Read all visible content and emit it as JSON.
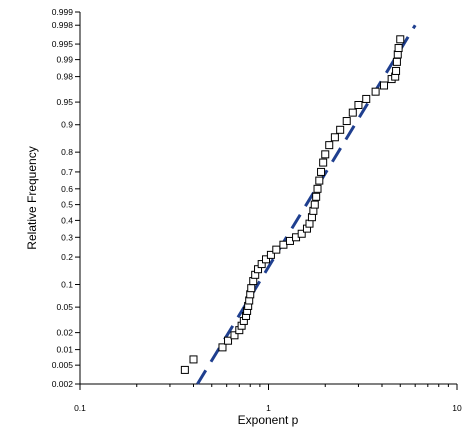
{
  "chart_data": {
    "type": "scatter",
    "title": "",
    "xlabel": "Exponent p",
    "ylabel": "Relative Frequency",
    "x_scale": "log",
    "y_scale": "probability",
    "xlim": [
      0.1,
      10
    ],
    "ylim": [
      0.002,
      0.999
    ],
    "x_ticks": [
      0.1,
      1,
      10
    ],
    "x_tick_labels": [
      "0.1",
      "1",
      "10"
    ],
    "y_ticks": [
      0.002,
      0.005,
      0.01,
      0.02,
      0.05,
      0.1,
      0.2,
      0.3,
      0.4,
      0.5,
      0.6,
      0.7,
      0.8,
      0.9,
      0.95,
      0.98,
      0.99,
      0.995,
      0.998,
      0.999
    ],
    "y_tick_labels": [
      "0.002",
      "0.005",
      "0.01",
      "0.02",
      "0.05",
      "0.1",
      "0.2",
      "0.3",
      "0.4",
      "0.5",
      "0.6",
      "0.7",
      "0.8",
      "0.9",
      "0.95",
      "0.98",
      "0.99",
      "0.995",
      "0.998",
      "0.999"
    ],
    "grid": false,
    "legend": "none",
    "colors": {
      "points": "#000000",
      "fit_line": "#1f3f8f"
    },
    "series": [
      {
        "type": "scatter",
        "marker": "square-open",
        "points": [
          [
            0.36,
            0.004
          ],
          [
            0.4,
            0.0065
          ],
          [
            0.57,
            0.011
          ],
          [
            0.61,
            0.0145
          ],
          [
            0.66,
            0.018
          ],
          [
            0.7,
            0.022
          ],
          [
            0.72,
            0.026
          ],
          [
            0.74,
            0.031
          ],
          [
            0.76,
            0.037
          ],
          [
            0.77,
            0.044
          ],
          [
            0.78,
            0.052
          ],
          [
            0.79,
            0.062
          ],
          [
            0.8,
            0.075
          ],
          [
            0.81,
            0.09
          ],
          [
            0.83,
            0.11
          ],
          [
            0.85,
            0.13
          ],
          [
            0.88,
            0.15
          ],
          [
            0.92,
            0.17
          ],
          [
            0.97,
            0.19
          ],
          [
            1.03,
            0.21
          ],
          [
            1.1,
            0.235
          ],
          [
            1.2,
            0.26
          ],
          [
            1.3,
            0.28
          ],
          [
            1.4,
            0.3
          ],
          [
            1.5,
            0.32
          ],
          [
            1.6,
            0.35
          ],
          [
            1.65,
            0.38
          ],
          [
            1.7,
            0.42
          ],
          [
            1.73,
            0.46
          ],
          [
            1.76,
            0.5
          ],
          [
            1.79,
            0.55
          ],
          [
            1.82,
            0.6
          ],
          [
            1.86,
            0.65
          ],
          [
            1.9,
            0.7
          ],
          [
            1.95,
            0.75
          ],
          [
            2.0,
            0.79
          ],
          [
            2.1,
            0.83
          ],
          [
            2.25,
            0.86
          ],
          [
            2.4,
            0.885
          ],
          [
            2.6,
            0.91
          ],
          [
            2.8,
            0.93
          ],
          [
            3.0,
            0.945
          ],
          [
            3.3,
            0.955
          ],
          [
            3.7,
            0.965
          ],
          [
            4.1,
            0.972
          ],
          [
            4.5,
            0.978
          ],
          [
            4.7,
            0.98
          ],
          [
            4.75,
            0.984
          ],
          [
            4.8,
            0.989
          ],
          [
            4.85,
            0.992
          ],
          [
            4.9,
            0.994
          ],
          [
            5.0,
            0.996
          ]
        ]
      },
      {
        "type": "line",
        "style": "dashed",
        "points": [
          [
            0.42,
            0.002
          ],
          [
            6.0,
            0.998
          ]
        ]
      }
    ]
  }
}
